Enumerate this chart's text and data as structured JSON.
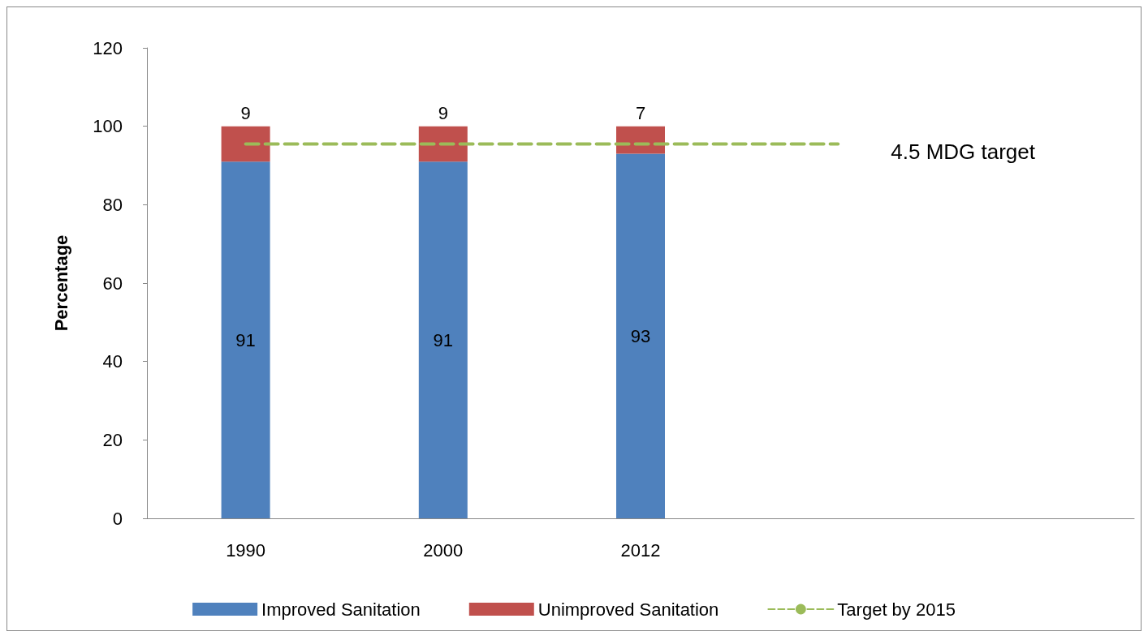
{
  "chart_data": {
    "type": "bar",
    "stacked": true,
    "ylabel": "Percentage",
    "categories": [
      "1990",
      "2000",
      "2012",
      null,
      null
    ],
    "series": [
      {
        "name": "Improved Sanitation",
        "color": "#4f81bd",
        "values": [
          91,
          91,
          93,
          null,
          null
        ],
        "value_labels": [
          "91",
          "91",
          "93",
          null,
          null
        ]
      },
      {
        "name": "Unimproved Sanitation",
        "color": "#c0504d",
        "values": [
          9,
          9,
          7,
          null,
          null
        ],
        "value_labels": [
          "9",
          "9",
          "7",
          null,
          null
        ]
      },
      {
        "name": "Target by 2015",
        "type": "line",
        "color": "#9bbb59",
        "values": [
          95.5,
          95.5,
          95.5,
          95.5,
          null
        ],
        "line_style": "dashed"
      }
    ],
    "ylim": [
      0,
      120
    ],
    "yticks": [
      0,
      20,
      40,
      60,
      80,
      100,
      120
    ],
    "grid": false,
    "legend": "bottom",
    "annotations": [
      "4.5 MDG target"
    ]
  }
}
